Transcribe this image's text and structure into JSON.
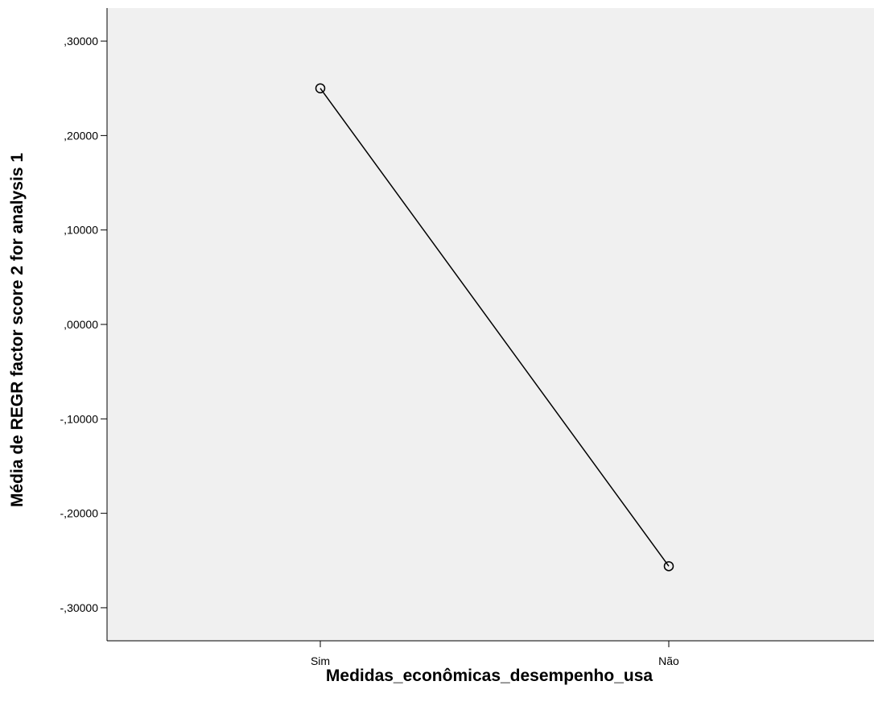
{
  "colors": {
    "background": "#ffffff",
    "plot_area": "#f0f0f0",
    "line": "#000000",
    "axis": "#000000"
  },
  "chart_data": {
    "type": "line",
    "title": "",
    "xlabel": "Medidas_econômicas_desempenho_usa",
    "ylabel": "Média de REGR factor score   2 for analysis 1",
    "categories": [
      "Sim",
      "Não"
    ],
    "series": [
      {
        "values": [
          0.25,
          -0.256
        ]
      }
    ],
    "ylim": [
      -0.335,
      0.335
    ],
    "yticks": [
      0.3,
      0.2,
      0.1,
      0.0,
      -0.1,
      -0.2,
      -0.3
    ],
    "ytick_labels": [
      ",30000",
      ",20000",
      ",10000",
      ",00000",
      "-,10000",
      "-,20000",
      "-,30000"
    ],
    "grid": false,
    "legend": "none",
    "markers": "open-circle"
  }
}
